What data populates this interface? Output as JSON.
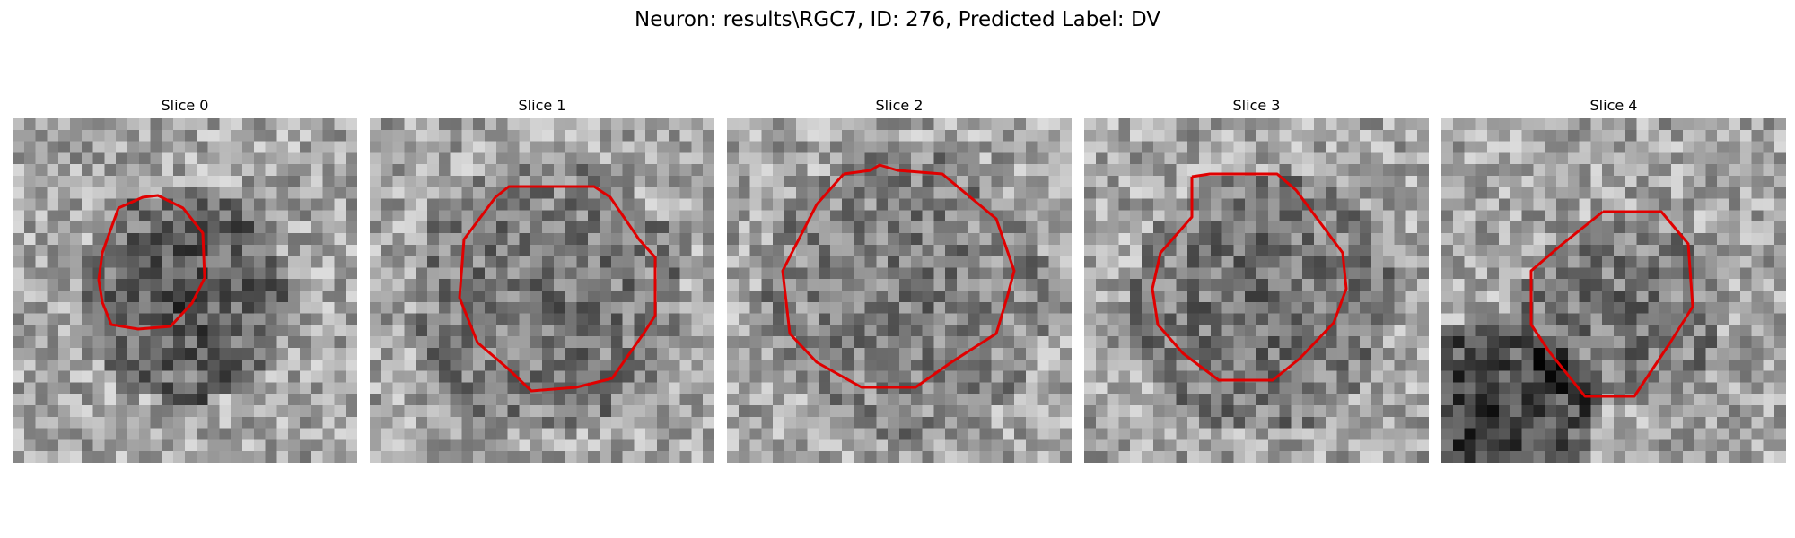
{
  "figure": {
    "title": "Neuron: results\\RGC7, ID: 276, Predicted Label: DV",
    "contour_color": "#e00000",
    "panels": [
      {
        "title": "Slice 0"
      },
      {
        "title": "Slice 1"
      },
      {
        "title": "Slice 2"
      },
      {
        "title": "Slice 3"
      },
      {
        "title": "Slice 4"
      }
    ]
  }
}
